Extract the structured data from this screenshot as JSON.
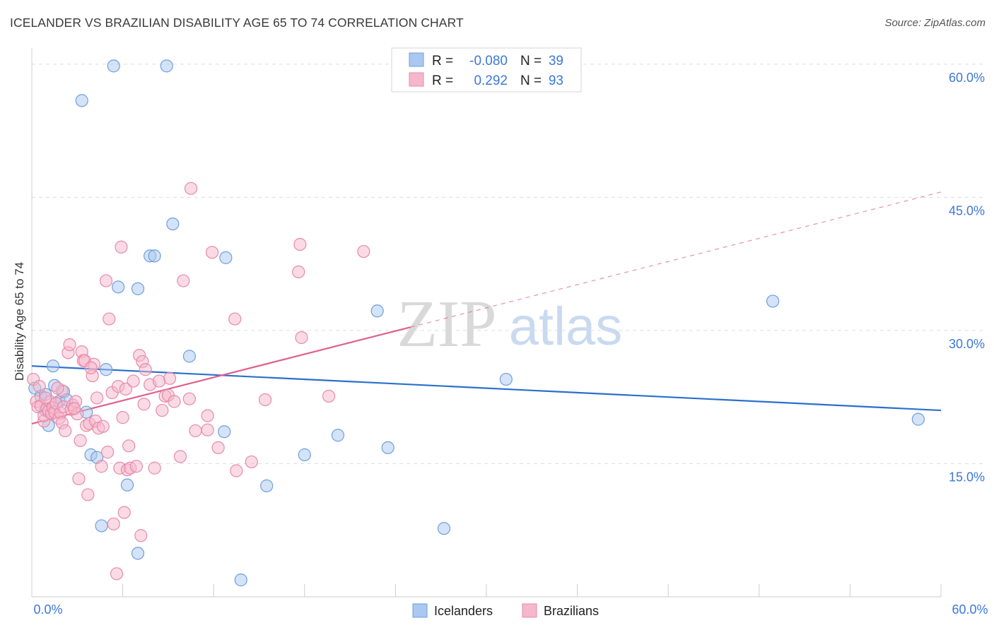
{
  "title": "ICELANDER VS BRAZILIAN DISABILITY AGE 65 TO 74 CORRELATION CHART",
  "source": "Source: ZipAtlas.com",
  "watermark": {
    "zip": "ZIP",
    "atlas": "atlas"
  },
  "colors": {
    "blue_fill": "#aac8f0",
    "blue_stroke": "#6e9fdc",
    "blue_line": "#2b6fcd",
    "pink_fill": "#f5b7cb",
    "pink_stroke": "#e88aa8",
    "pink_line": "#e0608c",
    "accent_text": "#3c78d8",
    "grid": "#dddddd"
  },
  "chart_data": {
    "type": "scatter",
    "title": "ICELANDER VS BRAZILIAN DISABILITY AGE 65 TO 74 CORRELATION CHART",
    "xlabel": "",
    "ylabel": "Disability Age 65 to 74",
    "xlim": [
      0,
      60
    ],
    "ylim": [
      0,
      61.5
    ],
    "x_tick_labels": [
      "0.0%",
      "60.0%"
    ],
    "y_ticks": [
      15,
      30,
      45,
      60
    ],
    "y_tick_labels": [
      "15.0%",
      "30.0%",
      "45.0%",
      "60.0%"
    ],
    "legend": {
      "r_label": "R =",
      "n_label": "N =",
      "rows": [
        {
          "r": "-0.080",
          "n": "39"
        },
        {
          "r": "0.292",
          "n": "93"
        }
      ]
    },
    "series": [
      {
        "name": "Icelanders",
        "trend": {
          "x0": 0,
          "y0": 26.0,
          "x1": 60,
          "y1": 21.0,
          "solid_to": 60
        },
        "points": [
          [
            0.2,
            23.5
          ],
          [
            0.6,
            22.6
          ],
          [
            0.9,
            22.8
          ],
          [
            1.4,
            26.0
          ],
          [
            1.1,
            19.3
          ],
          [
            1.5,
            23.8
          ],
          [
            1.8,
            22.0
          ],
          [
            2.1,
            23.1
          ],
          [
            3.3,
            55.9
          ],
          [
            3.6,
            20.8
          ],
          [
            3.9,
            16.0
          ],
          [
            4.3,
            15.7
          ],
          [
            4.6,
            8.0
          ],
          [
            4.9,
            25.6
          ],
          [
            5.4,
            59.8
          ],
          [
            5.7,
            34.9
          ],
          [
            6.3,
            12.6
          ],
          [
            7.0,
            34.7
          ],
          [
            7.0,
            4.9
          ],
          [
            7.8,
            38.4
          ],
          [
            8.1,
            38.4
          ],
          [
            8.9,
            59.8
          ],
          [
            9.3,
            42.0
          ],
          [
            10.4,
            27.1
          ],
          [
            12.8,
            38.2
          ],
          [
            12.7,
            18.6
          ],
          [
            13.8,
            1.9
          ],
          [
            15.5,
            12.5
          ],
          [
            18.0,
            16.0
          ],
          [
            20.2,
            18.2
          ],
          [
            22.8,
            32.2
          ],
          [
            23.5,
            16.8
          ],
          [
            27.2,
            7.7
          ],
          [
            31.3,
            24.5
          ],
          [
            48.9,
            33.3
          ],
          [
            58.5,
            20.0
          ],
          [
            0.9,
            21.0
          ],
          [
            1.6,
            21.8
          ],
          [
            2.3,
            22.2
          ]
        ]
      },
      {
        "name": "Brazilians",
        "trend": {
          "x0": 0,
          "y0": 19.5,
          "x1": 60,
          "y1": 45.6,
          "solid_to": 25
        },
        "points": [
          [
            0.1,
            24.5
          ],
          [
            0.3,
            22.0
          ],
          [
            0.4,
            21.4
          ],
          [
            0.6,
            21.5
          ],
          [
            0.8,
            19.8
          ],
          [
            0.8,
            20.4
          ],
          [
            1.0,
            21.2
          ],
          [
            1.1,
            20.9
          ],
          [
            1.2,
            22.0
          ],
          [
            1.3,
            20.6
          ],
          [
            1.4,
            21.3
          ],
          [
            1.5,
            20.8
          ],
          [
            1.6,
            21.8
          ],
          [
            1.8,
            20.1
          ],
          [
            1.9,
            20.7
          ],
          [
            2.0,
            23.2
          ],
          [
            2.0,
            19.6
          ],
          [
            2.1,
            21.4
          ],
          [
            2.2,
            18.7
          ],
          [
            2.4,
            27.5
          ],
          [
            2.5,
            28.4
          ],
          [
            2.6,
            21.1
          ],
          [
            2.7,
            21.6
          ],
          [
            2.9,
            22.0
          ],
          [
            3.0,
            20.6
          ],
          [
            3.1,
            13.3
          ],
          [
            3.2,
            17.6
          ],
          [
            3.3,
            27.6
          ],
          [
            3.4,
            26.6
          ],
          [
            3.5,
            26.6
          ],
          [
            3.6,
            19.3
          ],
          [
            3.7,
            11.5
          ],
          [
            3.8,
            19.5
          ],
          [
            4.0,
            24.9
          ],
          [
            4.1,
            26.2
          ],
          [
            4.2,
            19.8
          ],
          [
            4.3,
            22.4
          ],
          [
            4.4,
            19.0
          ],
          [
            4.6,
            14.7
          ],
          [
            4.7,
            19.2
          ],
          [
            4.9,
            35.6
          ],
          [
            5.0,
            16.3
          ],
          [
            5.1,
            31.3
          ],
          [
            5.3,
            23.0
          ],
          [
            5.4,
            8.2
          ],
          [
            5.6,
            2.6
          ],
          [
            5.7,
            23.7
          ],
          [
            5.8,
            14.5
          ],
          [
            5.9,
            39.4
          ],
          [
            6.1,
            9.5
          ],
          [
            6.2,
            23.4
          ],
          [
            6.3,
            14.3
          ],
          [
            6.4,
            17.0
          ],
          [
            6.5,
            14.5
          ],
          [
            6.7,
            24.3
          ],
          [
            6.9,
            14.7
          ],
          [
            7.1,
            27.2
          ],
          [
            7.2,
            6.9
          ],
          [
            7.3,
            26.5
          ],
          [
            7.4,
            21.7
          ],
          [
            7.5,
            25.6
          ],
          [
            7.8,
            23.9
          ],
          [
            8.1,
            14.5
          ],
          [
            8.6,
            21.0
          ],
          [
            8.8,
            22.6
          ],
          [
            9.0,
            22.7
          ],
          [
            9.1,
            24.6
          ],
          [
            9.4,
            22.0
          ],
          [
            9.8,
            15.8
          ],
          [
            10.0,
            35.6
          ],
          [
            10.4,
            22.3
          ],
          [
            10.5,
            46.0
          ],
          [
            10.8,
            18.7
          ],
          [
            11.6,
            20.4
          ],
          [
            11.6,
            18.8
          ],
          [
            11.9,
            38.8
          ],
          [
            12.3,
            16.8
          ],
          [
            13.4,
            31.3
          ],
          [
            13.5,
            14.2
          ],
          [
            14.5,
            15.2
          ],
          [
            15.4,
            22.2
          ],
          [
            17.7,
            39.7
          ],
          [
            17.6,
            36.6
          ],
          [
            17.8,
            29.2
          ],
          [
            19.6,
            22.6
          ],
          [
            21.9,
            38.9
          ],
          [
            0.5,
            23.7
          ],
          [
            0.9,
            22.4
          ],
          [
            1.7,
            23.5
          ],
          [
            2.8,
            21.2
          ],
          [
            3.9,
            25.8
          ],
          [
            6.0,
            20.2
          ],
          [
            8.4,
            24.3
          ]
        ]
      }
    ]
  },
  "bottom_legend": [
    "Icelanders",
    "Brazilians"
  ]
}
